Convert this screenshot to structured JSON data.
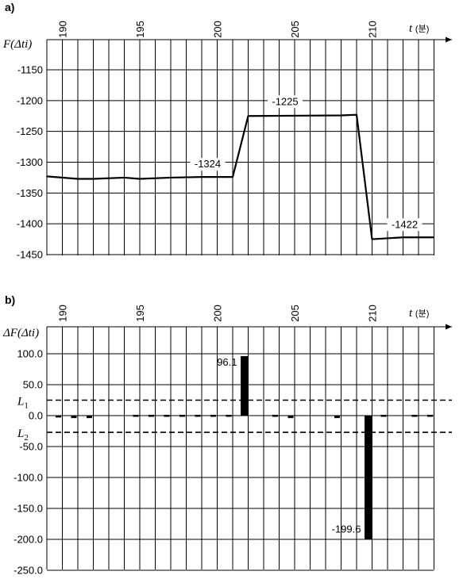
{
  "chart_data": [
    {
      "panel_label": "a)",
      "type": "line",
      "xlabel": "t (분)",
      "ylabel": "F(Δti)",
      "x_ticks": [
        "190",
        "195",
        "200",
        "205",
        "210"
      ],
      "y_ticks": [
        "-1150",
        "-1200",
        "-1250",
        "-1300",
        "-1350",
        "-1400",
        "-1450"
      ],
      "xlim": [
        189,
        214
      ],
      "ylim": [
        -1450,
        -1100
      ],
      "grid": true,
      "series": [
        {
          "x": [
            189,
            191,
            192,
            194,
            195,
            197,
            199,
            201,
            202,
            208,
            209,
            210,
            212,
            214
          ],
          "y": [
            -1323,
            -1327,
            -1327,
            -1325,
            -1327,
            -1325,
            -1324,
            -1324,
            -1225,
            -1224,
            -1223,
            -1425,
            -1422,
            -1422
          ]
        }
      ],
      "annotations": [
        {
          "text": "-1324",
          "x": 200,
          "y": -1324
        },
        {
          "text": "-1225",
          "x": 205,
          "y": -1225
        },
        {
          "text": "-1422",
          "x": 212,
          "y": -1422
        }
      ]
    },
    {
      "panel_label": "b)",
      "type": "bar",
      "xlabel": "t (분)",
      "ylabel": "ΔF(Δti)",
      "x_ticks": [
        "190",
        "195",
        "200",
        "205",
        "210"
      ],
      "y_ticks": [
        "100.0",
        "50.0",
        "0.0",
        "-50.0",
        "-100.0",
        "-150.0",
        "-200.0",
        "-250.0"
      ],
      "xlim": [
        189,
        214
      ],
      "ylim": [
        -250,
        125
      ],
      "grid": true,
      "x": [
        190,
        191,
        192,
        195,
        196,
        197,
        198,
        199,
        200,
        201,
        202,
        204,
        205,
        208,
        210,
        211,
        213,
        214
      ],
      "values": [
        -3,
        -4,
        -4,
        -2,
        1,
        1,
        -2,
        -2,
        -2,
        -2,
        96.1,
        -1,
        -4,
        -4,
        -199.6,
        1,
        1,
        -2
      ],
      "thresholds": [
        {
          "name": "L1",
          "value": 25
        },
        {
          "name": "L2",
          "value": -27
        }
      ],
      "annotations": [
        {
          "text": "96.1",
          "x": 202,
          "y": 96.1
        },
        {
          "text": "-199.6",
          "x": 210,
          "y": -199.6
        }
      ]
    }
  ]
}
